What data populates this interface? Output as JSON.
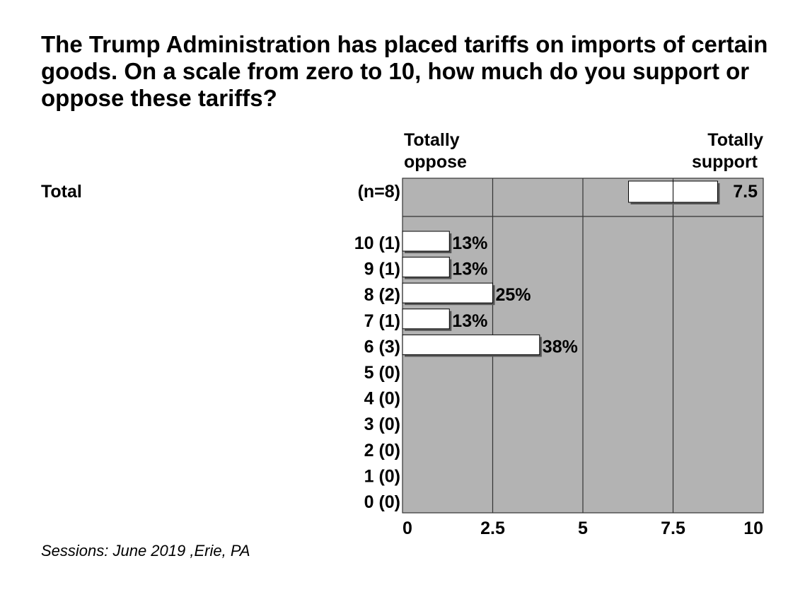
{
  "title": "The Trump Administration has placed tariffs on imports of certain goods. On a scale from zero to 10, how much do you support or oppose these tariffs?",
  "footnote": "Sessions: June 2019 ,Erie, PA",
  "chart_data": {
    "type": "bar",
    "group_label": "Total",
    "sample_label": "(n=8)",
    "scale_left_label": [
      "Totally",
      "oppose"
    ],
    "scale_right_label": [
      "Totally",
      "support"
    ],
    "mean": 7.5,
    "mean_label": "7.5",
    "xlim": [
      0,
      10
    ],
    "x_ticks": [
      0,
      2.5,
      5,
      7.5,
      10
    ],
    "x_tick_labels": [
      "0",
      "2.5",
      "5",
      "7.5",
      "10"
    ],
    "categories": [
      "10 (1)",
      "9 (1)",
      "8 (2)",
      "7 (1)",
      "6 (3)",
      "5 (0)",
      "4 (0)",
      "3 (0)",
      "2 (0)",
      "1 (0)",
      "0 (0)"
    ],
    "values": [
      13,
      13,
      25,
      13,
      38,
      0,
      0,
      0,
      0,
      0,
      0
    ],
    "value_labels": [
      "13%",
      "13%",
      "25%",
      "13%",
      "38%",
      "",
      "",
      "",
      "",
      "",
      ""
    ],
    "value_unit": "percent",
    "grid": true,
    "colors": {
      "plot_background": "#b3b3b3",
      "bar_fill": "#ffffff",
      "bar_stroke": "#000000",
      "bar_shadow": "#555555",
      "grid_line": "#333333"
    }
  }
}
